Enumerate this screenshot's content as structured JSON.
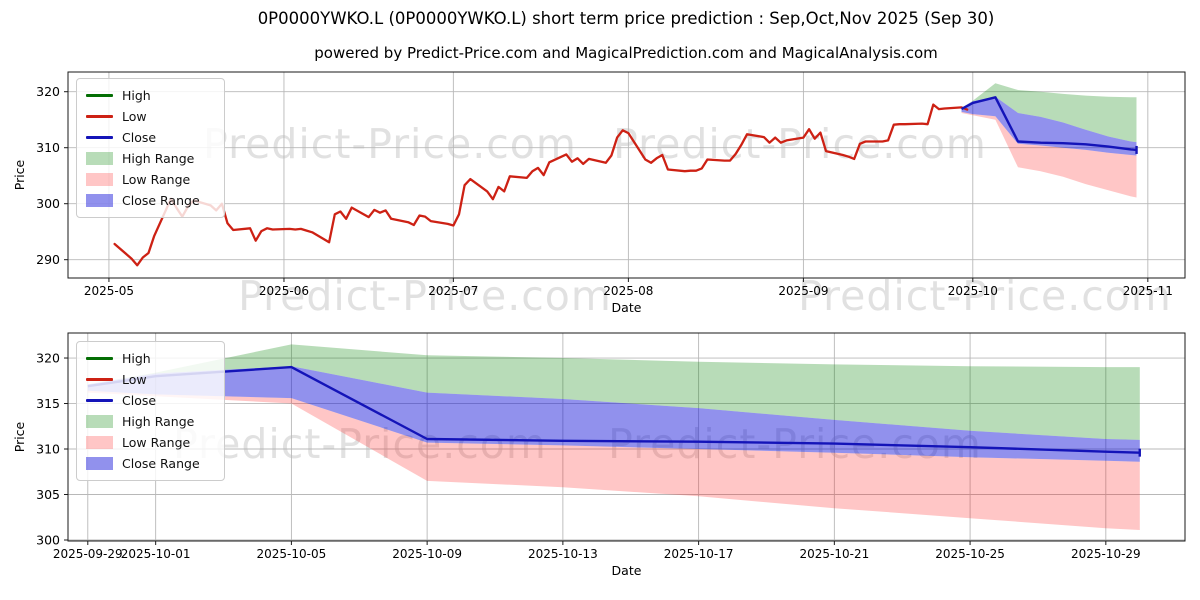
{
  "title": "0P0000YWKO.L (0P0000YWKO.L) short term price prediction : Sep,Oct,Nov 2025 (Sep 30)",
  "subtitle": "powered by Predict-Price.com and MagicalPrediction.com and MagicalAnalysis.com",
  "watermark_text": "Predict-Price.com",
  "colors": {
    "high": "#046e04",
    "low": "#cd2114",
    "close": "#1414b8",
    "high_range": "rgba(0,128,0,0.28)",
    "low_range": "rgba(255,15,15,0.24)",
    "close_range": "rgba(12,12,215,0.45)",
    "grid": "#b8b8b8",
    "spine": "#1a1a1a",
    "watermark": "#c9c9c9"
  },
  "legend": [
    {
      "label": "High",
      "type": "line",
      "color_key": "high"
    },
    {
      "label": "Low",
      "type": "line",
      "color_key": "low"
    },
    {
      "label": "Close",
      "type": "line",
      "color_key": "close"
    },
    {
      "label": "High Range",
      "type": "patch",
      "color_key": "high_range"
    },
    {
      "label": "Low Range",
      "type": "patch",
      "color_key": "low_range"
    },
    {
      "label": "Close Range",
      "type": "patch",
      "color_key": "close_range"
    }
  ],
  "chart_data": {
    "type": "line",
    "ticker": "0P0000YWKO.L",
    "history": {
      "series_name": "Low",
      "dates": [
        "2025-05-02",
        "2025-05-05",
        "2025-05-06",
        "2025-05-07",
        "2025-05-08",
        "2025-05-09",
        "2025-05-12",
        "2025-05-13",
        "2025-05-14",
        "2025-05-15",
        "2025-05-16",
        "2025-05-19",
        "2025-05-20",
        "2025-05-21",
        "2025-05-22",
        "2025-05-23",
        "2025-05-26",
        "2025-05-27",
        "2025-05-28",
        "2025-05-29",
        "2025-05-30",
        "2025-06-02",
        "2025-06-03",
        "2025-06-04",
        "2025-06-05",
        "2025-06-06",
        "2025-06-09",
        "2025-06-10",
        "2025-06-11",
        "2025-06-12",
        "2025-06-13",
        "2025-06-16",
        "2025-06-17",
        "2025-06-18",
        "2025-06-19",
        "2025-06-20",
        "2025-06-23",
        "2025-06-24",
        "2025-06-25",
        "2025-06-26",
        "2025-06-27",
        "2025-06-30",
        "2025-07-01",
        "2025-07-02",
        "2025-07-03",
        "2025-07-04",
        "2025-07-07",
        "2025-07-08",
        "2025-07-09",
        "2025-07-10",
        "2025-07-11",
        "2025-07-14",
        "2025-07-15",
        "2025-07-16",
        "2025-07-17",
        "2025-07-18",
        "2025-07-21",
        "2025-07-22",
        "2025-07-23",
        "2025-07-24",
        "2025-07-25",
        "2025-07-28",
        "2025-07-29",
        "2025-07-30",
        "2025-07-31",
        "2025-08-01",
        "2025-08-04",
        "2025-08-05",
        "2025-08-06",
        "2025-08-07",
        "2025-08-08",
        "2025-08-11",
        "2025-08-12",
        "2025-08-13",
        "2025-08-14",
        "2025-08-15",
        "2025-08-18",
        "2025-08-19",
        "2025-08-20",
        "2025-08-21",
        "2025-08-22",
        "2025-08-25",
        "2025-08-26",
        "2025-08-27",
        "2025-08-28",
        "2025-08-29",
        "2025-09-01",
        "2025-09-02",
        "2025-09-03",
        "2025-09-04",
        "2025-09-05",
        "2025-09-08",
        "2025-09-09",
        "2025-09-10",
        "2025-09-11",
        "2025-09-12",
        "2025-09-15",
        "2025-09-16",
        "2025-09-17",
        "2025-09-18",
        "2025-09-19",
        "2025-09-22",
        "2025-09-23",
        "2025-09-24",
        "2025-09-25",
        "2025-09-26",
        "2025-09-29",
        "2025-09-30"
      ],
      "values": [
        292.8,
        290.2,
        289.0,
        290.4,
        291.2,
        294.2,
        300.9,
        299.2,
        297.7,
        299.5,
        300.6,
        299.7,
        298.8,
        300.0,
        296.5,
        295.3,
        295.6,
        293.4,
        295.1,
        295.6,
        295.4,
        295.5,
        295.4,
        295.5,
        295.2,
        294.9,
        293.1,
        298.1,
        298.6,
        297.3,
        299.3,
        297.6,
        298.9,
        298.4,
        298.8,
        297.3,
        296.7,
        296.2,
        297.9,
        297.7,
        296.9,
        296.4,
        296.1,
        298.1,
        303.3,
        304.4,
        302.2,
        300.8,
        303.0,
        302.2,
        304.9,
        304.6,
        305.8,
        306.4,
        305.1,
        307.4,
        308.8,
        307.5,
        308.1,
        307.1,
        308.0,
        307.3,
        308.6,
        311.8,
        313.1,
        312.6,
        307.9,
        307.3,
        308.1,
        308.7,
        306.1,
        305.8,
        305.9,
        305.9,
        306.3,
        307.9,
        307.7,
        307.7,
        308.9,
        310.5,
        312.4,
        311.9,
        310.9,
        311.8,
        310.9,
        311.3,
        311.8,
        313.3,
        311.6,
        312.7,
        309.4,
        308.7,
        308.4,
        308.0,
        310.7,
        311.1,
        311.1,
        311.3,
        314.1,
        314.2,
        314.2,
        314.3,
        314.2,
        317.7,
        316.9,
        317.0,
        317.2,
        316.8
      ]
    },
    "prediction": {
      "dates": [
        "2025-09-29",
        "2025-10-01",
        "2025-10-05",
        "2025-10-09",
        "2025-10-13",
        "2025-10-17",
        "2025-10-21",
        "2025-10-25",
        "2025-10-29",
        "2025-10-30"
      ],
      "close": [
        316.9,
        318.0,
        319.0,
        311.1,
        310.9,
        310.8,
        310.6,
        310.2,
        309.7,
        309.6
      ],
      "high_upper": [
        317.1,
        318.4,
        321.5,
        320.3,
        320.0,
        319.6,
        319.3,
        319.1,
        319.0,
        319.0
      ],
      "close_upper": [
        317.1,
        318.3,
        319.1,
        316.2,
        315.5,
        314.5,
        313.2,
        312.0,
        311.1,
        311.0
      ],
      "close_lower": [
        316.4,
        316.0,
        315.6,
        310.7,
        310.4,
        310.0,
        309.6,
        309.1,
        308.7,
        308.6
      ],
      "low_lower": [
        316.2,
        315.8,
        315.0,
        306.5,
        305.8,
        304.8,
        303.5,
        302.4,
        301.3,
        301.1
      ]
    },
    "charts": [
      {
        "name": "history-and-forecast",
        "xlabel": "Date",
        "ylabel": "Price",
        "yticks": [
          290,
          300,
          310,
          320
        ],
        "xticks": [
          {
            "pos": "2025-05-01",
            "label": "2025-05"
          },
          {
            "pos": "2025-06-01",
            "label": "2025-06"
          },
          {
            "pos": "2025-07-01",
            "label": "2025-07"
          },
          {
            "pos": "2025-08-01",
            "label": "2025-08"
          },
          {
            "pos": "2025-09-01",
            "label": "2025-09"
          },
          {
            "pos": "2025-10-01",
            "label": "2025-10"
          },
          {
            "pos": "2025-11-01",
            "label": "2025-11"
          }
        ],
        "xlim": [
          "2025-04-23T18:00:00",
          "2025-11-07T14:00:00"
        ],
        "ylim": [
          286.73,
          323.52
        ],
        "show_history": true
      },
      {
        "name": "forecast-zoom",
        "xlabel": "Date",
        "ylabel": "Price",
        "yticks": [
          300,
          305,
          310,
          315,
          320
        ],
        "xticks": [
          {
            "pos": "2025-09-29",
            "label": "2025-09-29"
          },
          {
            "pos": "2025-10-01",
            "label": "2025-10-01"
          },
          {
            "pos": "2025-10-05",
            "label": "2025-10-05"
          },
          {
            "pos": "2025-10-09",
            "label": "2025-10-09"
          },
          {
            "pos": "2025-10-13",
            "label": "2025-10-13"
          },
          {
            "pos": "2025-10-17",
            "label": "2025-10-17"
          },
          {
            "pos": "2025-10-21",
            "label": "2025-10-21"
          },
          {
            "pos": "2025-10-25",
            "label": "2025-10-25"
          },
          {
            "pos": "2025-10-29",
            "label": "2025-10-29"
          }
        ],
        "xlim": [
          "2025-09-28T10:00:00",
          "2025-10-31T08:00:00"
        ],
        "ylim": [
          299.89,
          322.75
        ],
        "show_history": false
      }
    ]
  }
}
